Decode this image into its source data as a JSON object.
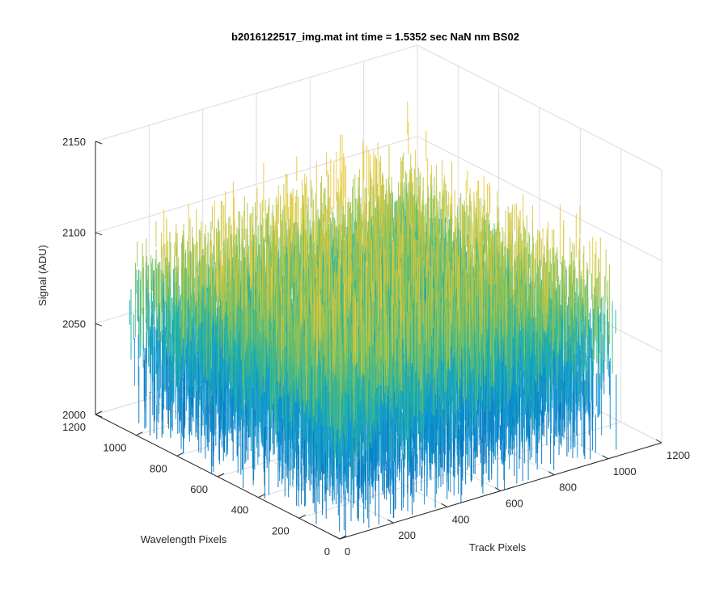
{
  "chart_data": {
    "type": "surface",
    "title": "b2016122517_img.mat int time = 1.5352 sec  NaN nm BS02",
    "xlabel": "Track Pixels",
    "ylabel": "Wavelength Pixels",
    "zlabel": "Signal (ADU)",
    "xlim": [
      0,
      1200
    ],
    "ylim": [
      0,
      1200
    ],
    "zlim": [
      2000,
      2150
    ],
    "xticks": [
      "0",
      "200",
      "400",
      "600",
      "800",
      "1000",
      "1200"
    ],
    "yticks": [
      "0",
      "200",
      "400",
      "600",
      "800",
      "1000",
      "1200"
    ],
    "zticks": [
      "2000",
      "2050",
      "2100",
      "2150"
    ],
    "grid": true,
    "colormap": "parula",
    "surface": {
      "x_extent": [
        1,
        1024
      ],
      "y_extent": [
        1,
        1024
      ],
      "z_low_approx": 2040,
      "z_mean_approx": 2075,
      "z_high_approx": 2120
    },
    "colors": {
      "low": "#0072bd",
      "mid": "#21b2a3",
      "high": "#e6c838",
      "axis": "#262626",
      "grid": "#dcdcdc"
    }
  }
}
